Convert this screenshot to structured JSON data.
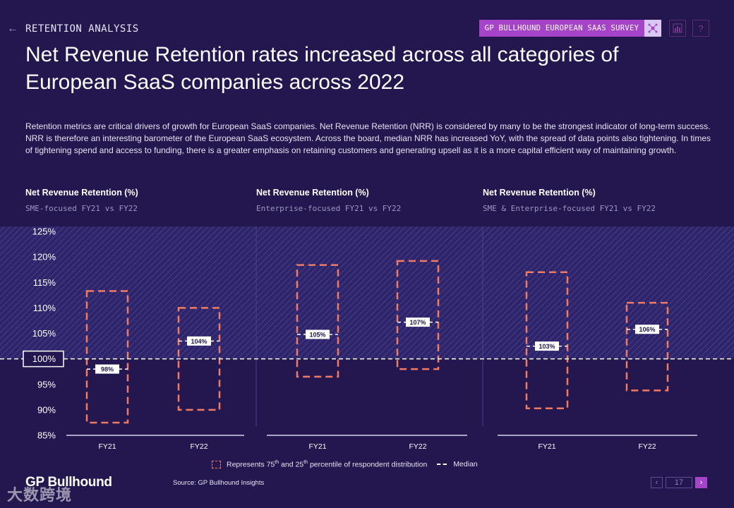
{
  "header": {
    "section": "RETENTION ANALYSIS",
    "survey_tag": "GP BULLHOUND EUROPEAN SAAS SURVEY",
    "title": "Net Revenue Retention rates increased across all categories of European SaaS companies across 2022",
    "intro": "Retention metrics are critical drivers of growth for European SaaS companies. Net Revenue Retention (NRR) is considered by many to be the strongest indicator of long-term success. NRR is therefore an interesting barometer of the European SaaS ecosystem. Across the board, median NRR has increased YoY, with the spread of data points also tightening. In times of tightening spend and access to funding, there is a greater emphasis on retaining customers and generating upsell as it is a more capital efficient way of maintaining growth."
  },
  "panels": [
    {
      "title": "Net Revenue Retention (%)",
      "subtitle": "SME-focused FY21 vs FY22"
    },
    {
      "title": "Net Revenue Retention (%)",
      "subtitle": "Enterprise-focused FY21 vs FY22"
    },
    {
      "title": "Net Revenue Retention (%)",
      "subtitle": "SME & Enterprise-focused FY21 vs FY22"
    }
  ],
  "legend": {
    "box_label_pre": "Represents 75",
    "box_sup1": "th",
    "box_label_mid": " and 25",
    "box_sup2": "th",
    "box_label_post": " percentile of respondent distribution",
    "median_label": "Median"
  },
  "footer": {
    "logo": "GP Bullhound",
    "source": "Source: GP Bullhound Insights",
    "page": "17",
    "watermark": "大数跨境"
  },
  "colors": {
    "background": "#24174f",
    "hatch_band": "#3a2f7e",
    "box_stroke": "#f07b62",
    "survey_tag": "#a544c8"
  },
  "chart_data": {
    "type": "box-range",
    "ylim": [
      85,
      125
    ],
    "yticks": [
      "85%",
      "90%",
      "95%",
      "100%",
      "105%",
      "110%",
      "115%",
      "120%",
      "125%"
    ],
    "yticks_values": [
      85,
      90,
      95,
      100,
      105,
      110,
      115,
      120,
      125
    ],
    "highlight_tick": "100%",
    "reference_line": 100,
    "hatched_region": [
      100,
      125
    ],
    "groups": [
      {
        "name": "SME-focused",
        "series": [
          {
            "category": "FY21",
            "p25": 87.5,
            "p75": 113.3,
            "median": 98.0,
            "label": "98%"
          },
          {
            "category": "FY22",
            "p25": 90.0,
            "p75": 110.0,
            "median": 103.5,
            "label": "104%"
          }
        ]
      },
      {
        "name": "Enterprise-focused",
        "series": [
          {
            "category": "FY21",
            "p25": 96.5,
            "p75": 118.4,
            "median": 104.8,
            "label": "105%"
          },
          {
            "category": "FY22",
            "p25": 98.0,
            "p75": 119.2,
            "median": 107.2,
            "label": "107%"
          }
        ]
      },
      {
        "name": "SME & Enterprise-focused",
        "series": [
          {
            "category": "FY21",
            "p25": 90.3,
            "p75": 117.0,
            "median": 102.5,
            "label": "103%"
          },
          {
            "category": "FY22",
            "p25": 93.8,
            "p75": 111.0,
            "median": 105.8,
            "label": "106%"
          }
        ]
      }
    ]
  }
}
